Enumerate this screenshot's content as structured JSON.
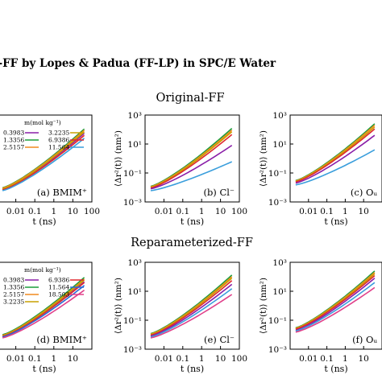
{
  "figure": {
    "title": "L-FF by Lopes & Padua (FF-LP) in SPC/E Water",
    "sections": [
      "Original-FF",
      "Reparameterized-FF"
    ]
  },
  "chart_data": [
    {
      "type": "line",
      "panel": "(a) BMIM⁺",
      "section": "Original-FF",
      "xscale": "log",
      "yscale": "log",
      "xlim": [
        0.001,
        100
      ],
      "ylim": [
        0.001,
        1000
      ],
      "xlabel": "t (ns)",
      "ylabel": "",
      "x_ticks": [
        "0.01",
        "0.1",
        "1",
        "10",
        "100"
      ],
      "y_ticks": [],
      "legend": {
        "title": "m(mol kg⁻¹)",
        "columns": 2
      },
      "series": [
        {
          "name": "0.3983",
          "color": "#8a1ea8",
          "values": [
            [
              0.002,
              0.0075
            ],
            [
              40,
              55
            ]
          ]
        },
        {
          "name": "1.3356",
          "color": "#1a9e3a",
          "values": [
            [
              0.002,
              0.0095
            ],
            [
              40,
              110
            ]
          ]
        },
        {
          "name": "2.5157",
          "color": "#f08a1e",
          "values": [
            [
              0.002,
              0.009
            ],
            [
              40,
              90
            ]
          ]
        },
        {
          "name": "3.2235",
          "color": "#c8a000",
          "values": [
            [
              0.002,
              0.008
            ],
            [
              40,
              70
            ]
          ]
        },
        {
          "name": "6.9386",
          "color": "#e0282e",
          "values": [
            [
              0.002,
              0.0068
            ],
            [
              40,
              40
            ]
          ]
        },
        {
          "name": "11.564",
          "color": "#3a9edc",
          "values": [
            [
              0.002,
              0.006
            ],
            [
              40,
              25
            ]
          ]
        }
      ]
    },
    {
      "type": "line",
      "panel": "(b) Cl⁻",
      "section": "Original-FF",
      "xscale": "log",
      "yscale": "log",
      "xlim": [
        0.001,
        100
      ],
      "ylim": [
        0.001,
        1000
      ],
      "xlabel": "t (ns)",
      "ylabel": "⟨Δr²(t)⟩ (nm²)",
      "x_ticks": [
        "0.01",
        "0.1",
        "1",
        "10",
        "100"
      ],
      "y_ticks": [
        "10⁻³",
        "10⁻¹",
        "10¹",
        "10³"
      ],
      "series": [
        {
          "name": "0.3983",
          "color": "#1a9e3a",
          "values": [
            [
              0.002,
              0.012
            ],
            [
              40,
              120
            ]
          ]
        },
        {
          "name": "1.3356",
          "color": "#f08a1e",
          "values": [
            [
              0.002,
              0.011
            ],
            [
              40,
              90
            ]
          ]
        },
        {
          "name": "2.5157",
          "color": "#c8a000",
          "values": [
            [
              0.002,
              0.01
            ],
            [
              40,
              70
            ]
          ]
        },
        {
          "name": "3.2235",
          "color": "#e0282e",
          "values": [
            [
              0.002,
              0.009
            ],
            [
              40,
              45
            ]
          ]
        },
        {
          "name": "6.9386",
          "color": "#8a1ea8",
          "values": [
            [
              0.002,
              0.008
            ],
            [
              40,
              8
            ]
          ]
        },
        {
          "name": "11.564",
          "color": "#3a9edc",
          "values": [
            [
              0.002,
              0.006
            ],
            [
              40,
              0.6
            ]
          ]
        }
      ]
    },
    {
      "type": "line",
      "panel": "(c) Oᵤ",
      "section": "Original-FF",
      "xscale": "log",
      "yscale": "log",
      "xlim": [
        0.001,
        100
      ],
      "ylim": [
        0.001,
        1000
      ],
      "xlabel": "t (ns)",
      "ylabel": "⟨Δr²(t)⟩ (nm²)",
      "x_ticks": [
        "0.01",
        "0.1",
        "1",
        "10"
      ],
      "y_ticks": [
        "10⁻³",
        "10⁻¹",
        "10¹",
        "10³"
      ],
      "series": [
        {
          "name": "0.3983",
          "color": "#1a9e3a",
          "values": [
            [
              0.002,
              0.03
            ],
            [
              40,
              250
            ]
          ]
        },
        {
          "name": "1.3356",
          "color": "#f08a1e",
          "values": [
            [
              0.002,
              0.028
            ],
            [
              40,
              200
            ]
          ]
        },
        {
          "name": "2.5157",
          "color": "#c8a000",
          "values": [
            [
              0.002,
              0.026
            ],
            [
              40,
              150
            ]
          ]
        },
        {
          "name": "3.2235",
          "color": "#e0282e",
          "values": [
            [
              0.002,
              0.024
            ],
            [
              40,
              110
            ]
          ]
        },
        {
          "name": "6.9386",
          "color": "#8a1ea8",
          "values": [
            [
              0.002,
              0.02
            ],
            [
              40,
              40
            ]
          ]
        },
        {
          "name": "11.564",
          "color": "#3a9edc",
          "values": [
            [
              0.002,
              0.015
            ],
            [
              40,
              4
            ]
          ]
        }
      ]
    },
    {
      "type": "line",
      "panel": "(d) BMIM⁺",
      "section": "Reparameterized-FF",
      "xscale": "log",
      "yscale": "log",
      "xlim": [
        0.001,
        100
      ],
      "ylim": [
        0.001,
        1000
      ],
      "xlabel": "t (ns)",
      "ylabel": "",
      "x_ticks": [
        "0.01",
        "0.1",
        "1",
        "10"
      ],
      "y_ticks": [],
      "legend": {
        "title": "m(mol kg⁻¹)",
        "columns": 2
      },
      "series": [
        {
          "name": "0.3983",
          "color": "#8a1ea8",
          "values": [
            [
              0.002,
              0.008
            ],
            [
              40,
              45
            ]
          ]
        },
        {
          "name": "1.3356",
          "color": "#1a9e3a",
          "values": [
            [
              0.002,
              0.01
            ],
            [
              40,
              90
            ]
          ]
        },
        {
          "name": "2.5157",
          "color": "#f08a1e",
          "values": [
            [
              0.002,
              0.009
            ],
            [
              40,
              70
            ]
          ]
        },
        {
          "name": "3.2235",
          "color": "#c8a000",
          "values": [
            [
              0.002,
              0.0085
            ],
            [
              40,
              60
            ]
          ]
        },
        {
          "name": "6.9386",
          "color": "#e0282e",
          "values": [
            [
              0.002,
              0.0075
            ],
            [
              40,
              40
            ]
          ]
        },
        {
          "name": "11.564",
          "color": "#2a6ad6",
          "values": [
            [
              0.002,
              0.007
            ],
            [
              40,
              25
            ]
          ]
        },
        {
          "name": "18.503",
          "color": "#e0408a",
          "values": [
            [
              0.002,
              0.006
            ],
            [
              40,
              12
            ]
          ]
        }
      ]
    },
    {
      "type": "line",
      "panel": "(e) Cl⁻",
      "section": "Reparameterized-FF",
      "xscale": "log",
      "yscale": "log",
      "xlim": [
        0.001,
        100
      ],
      "ylim": [
        0.001,
        1000
      ],
      "xlabel": "t (ns)",
      "ylabel": "⟨Δr²(t)⟩ (nm²)",
      "x_ticks": [
        "0.01",
        "0.1",
        "1",
        "10",
        "100"
      ],
      "y_ticks": [
        "10⁻³",
        "10⁻¹",
        "10¹",
        "10³"
      ],
      "series": [
        {
          "name": "0.3983",
          "color": "#1a9e3a",
          "values": [
            [
              0.002,
              0.012
            ],
            [
              40,
              130
            ]
          ]
        },
        {
          "name": "1.3356",
          "color": "#f08a1e",
          "values": [
            [
              0.002,
              0.011
            ],
            [
              40,
              100
            ]
          ]
        },
        {
          "name": "2.5157",
          "color": "#c8a000",
          "values": [
            [
              0.002,
              0.01
            ],
            [
              40,
              80
            ]
          ]
        },
        {
          "name": "3.2235",
          "color": "#e0282e",
          "values": [
            [
              0.002,
              0.009
            ],
            [
              40,
              55
            ]
          ]
        },
        {
          "name": "6.9386",
          "color": "#8a1ea8",
          "values": [
            [
              0.002,
              0.008
            ],
            [
              40,
              30
            ]
          ]
        },
        {
          "name": "11.564",
          "color": "#3a9edc",
          "values": [
            [
              0.002,
              0.007
            ],
            [
              40,
              15
            ]
          ]
        },
        {
          "name": "18.503",
          "color": "#e0408a",
          "values": [
            [
              0.002,
              0.006
            ],
            [
              40,
              6
            ]
          ]
        }
      ]
    },
    {
      "type": "line",
      "panel": "(f) Oᵤ",
      "section": "Reparameterized-FF",
      "xscale": "log",
      "yscale": "log",
      "xlim": [
        0.001,
        100
      ],
      "ylim": [
        0.001,
        1000
      ],
      "xlabel": "t (ns)",
      "ylabel": "⟨Δr²(t)⟩ (nm²)",
      "x_ticks": [
        "0.01",
        "0.1",
        "1",
        "10"
      ],
      "y_ticks": [
        "10⁻³",
        "10⁻¹",
        "10¹",
        "10³"
      ],
      "series": [
        {
          "name": "0.3983",
          "color": "#1a9e3a",
          "values": [
            [
              0.002,
              0.03
            ],
            [
              40,
              250
            ]
          ]
        },
        {
          "name": "1.3356",
          "color": "#f08a1e",
          "values": [
            [
              0.002,
              0.028
            ],
            [
              40,
              200
            ]
          ]
        },
        {
          "name": "2.5157",
          "color": "#c8a000",
          "values": [
            [
              0.002,
              0.026
            ],
            [
              40,
              160
            ]
          ]
        },
        {
          "name": "3.2235",
          "color": "#e0282e",
          "values": [
            [
              0.002,
              0.024
            ],
            [
              40,
              120
            ]
          ]
        },
        {
          "name": "6.9386",
          "color": "#8a1ea8",
          "values": [
            [
              0.002,
              0.02
            ],
            [
              40,
              80
            ]
          ]
        },
        {
          "name": "11.564",
          "color": "#3a9edc",
          "values": [
            [
              0.002,
              0.018
            ],
            [
              40,
              40
            ]
          ]
        },
        {
          "name": "18.503",
          "color": "#e0408a",
          "values": [
            [
              0.002,
              0.015
            ],
            [
              40,
              18
            ]
          ]
        }
      ]
    }
  ]
}
